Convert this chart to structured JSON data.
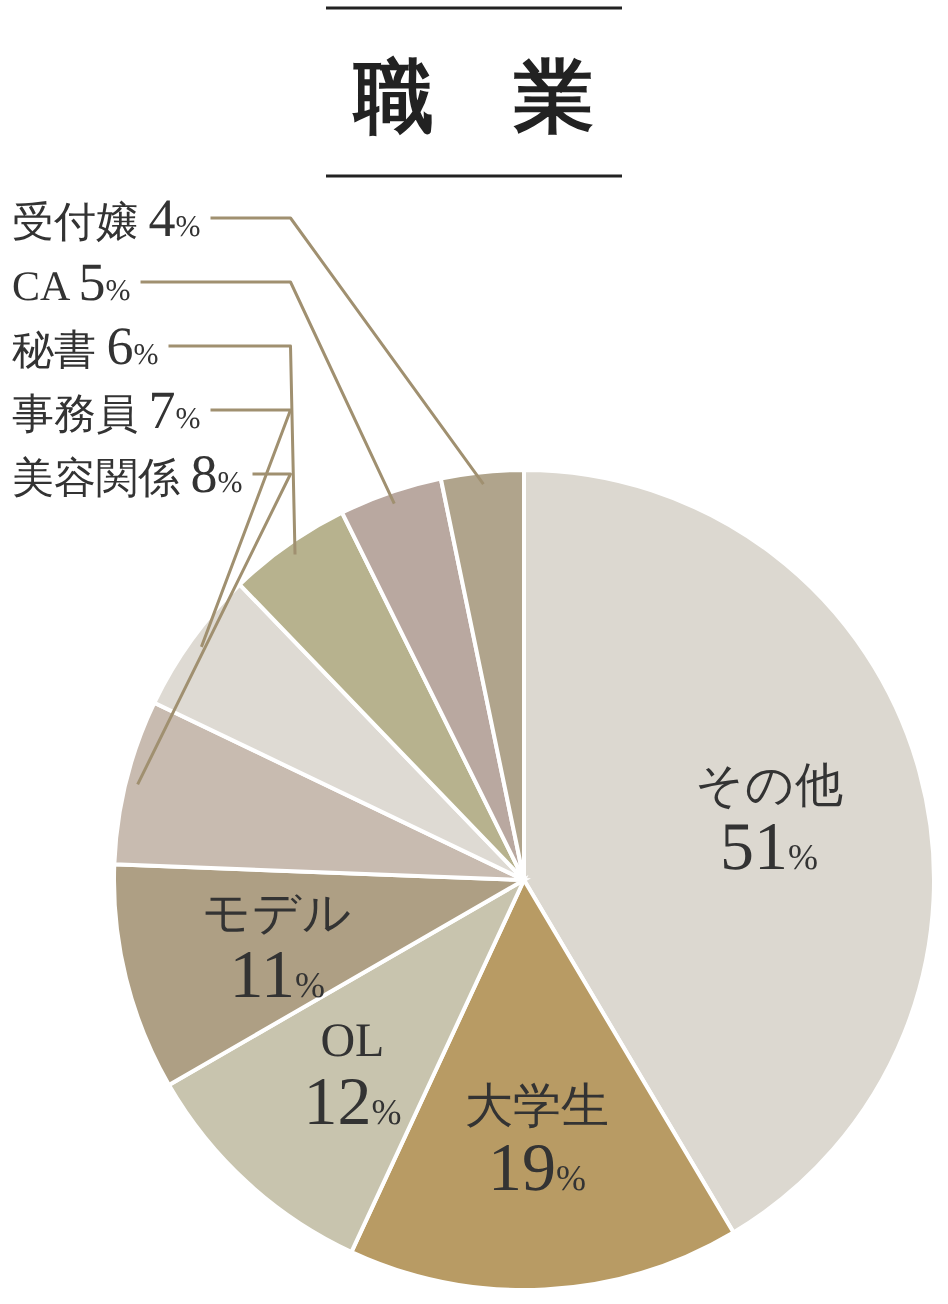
{
  "chart_data": {
    "type": "pie",
    "title": "職　業",
    "categories": [
      "その他",
      "大学生",
      "OL",
      "モデル",
      "美容関係",
      "事務員",
      "秘書",
      "CA",
      "受付嬢"
    ],
    "values": [
      51,
      19,
      12,
      11,
      8,
      7,
      6,
      5,
      4
    ],
    "value_labels": [
      "51%",
      "19%",
      "12%",
      "11%",
      "8%",
      "7%",
      "6%",
      "5%",
      "4%"
    ],
    "colors": [
      "#dcd8d0",
      "#b89b64",
      "#c8c4ae",
      "#ae9f84",
      "#c8bbb0",
      "#dedad3",
      "#b7b28e",
      "#b9a8a0",
      "#b0a48c"
    ]
  }
}
